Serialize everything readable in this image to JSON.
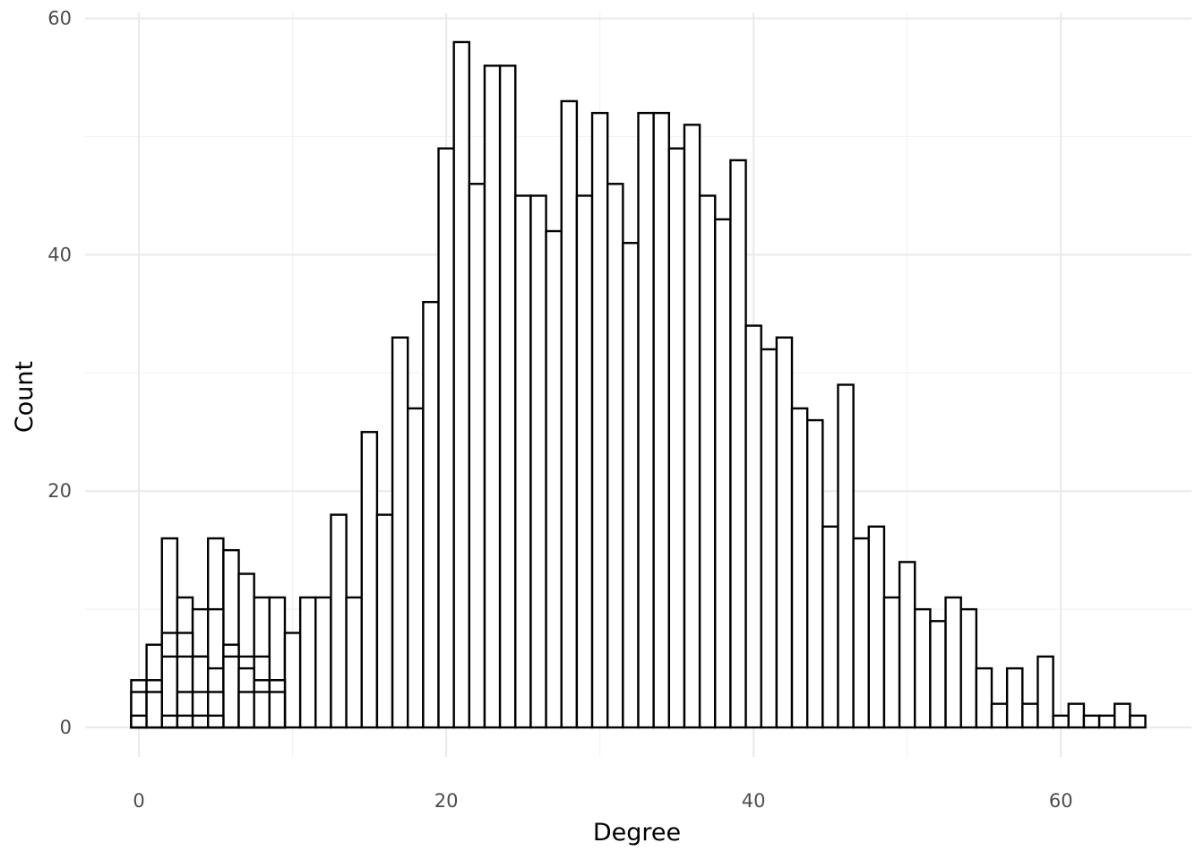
{
  "chart_data": {
    "type": "bar",
    "xlabel": "Degree",
    "ylabel": "Count",
    "xlim": [
      -3.5,
      68.5
    ],
    "ylim": [
      -2.5,
      60.5
    ],
    "x_ticks": [
      0,
      20,
      40,
      60
    ],
    "y_ticks": [
      0,
      20,
      40,
      60
    ],
    "x_tick_labels": [
      "0",
      "20",
      "40",
      "60"
    ],
    "y_tick_labels": [
      "0",
      "20",
      "40",
      "60"
    ],
    "grid": true,
    "bin_width": 1,
    "bar_fill": "#ffffff",
    "bar_outline": "#000000",
    "grid_color": "#ebebeb",
    "series": [
      {
        "x": [
          0,
          1,
          2,
          3,
          4,
          5,
          6,
          7,
          8,
          9,
          10,
          11,
          12,
          13,
          14,
          15,
          16,
          17,
          18,
          19,
          20,
          21,
          22,
          23,
          24,
          25,
          26,
          27,
          28,
          29,
          30,
          31,
          32,
          33,
          34,
          35,
          36,
          37,
          38,
          39,
          40,
          41,
          42,
          43,
          44,
          45,
          46,
          47,
          48,
          49,
          50,
          51,
          52,
          53,
          54,
          55,
          56,
          57,
          58,
          59,
          60,
          61,
          62,
          63,
          64,
          65
        ],
        "values": [
          4,
          7,
          16,
          11,
          10,
          16,
          15,
          13,
          11,
          11,
          8,
          11,
          11,
          18,
          11,
          25,
          18,
          33,
          27,
          36,
          49,
          58,
          46,
          56,
          56,
          45,
          45,
          42,
          53,
          45,
          52,
          46,
          41,
          52,
          52,
          49,
          51,
          45,
          43,
          48,
          34,
          32,
          33,
          27,
          26,
          17,
          29,
          16,
          17,
          11,
          14,
          10,
          9,
          11,
          10,
          5,
          2,
          5,
          2,
          6,
          1,
          2,
          1,
          1,
          2,
          1
        ]
      },
      {
        "x": [
          0,
          1,
          2,
          3,
          4,
          5,
          6,
          7,
          8,
          9
        ],
        "values": [
          3,
          4,
          8,
          8,
          6,
          10,
          7,
          6,
          6,
          4
        ]
      },
      {
        "x": [
          2,
          3,
          4,
          5,
          6,
          7,
          8,
          9
        ],
        "values": [
          6,
          6,
          6,
          5,
          6,
          5,
          4,
          4
        ]
      },
      {
        "x": [
          0,
          1,
          3,
          4,
          5,
          7,
          8,
          9
        ],
        "values": [
          1,
          3,
          3,
          3,
          3,
          3,
          3,
          3
        ]
      },
      {
        "x": [
          2,
          3,
          4,
          5
        ],
        "values": [
          1,
          1,
          1,
          1
        ]
      }
    ]
  }
}
